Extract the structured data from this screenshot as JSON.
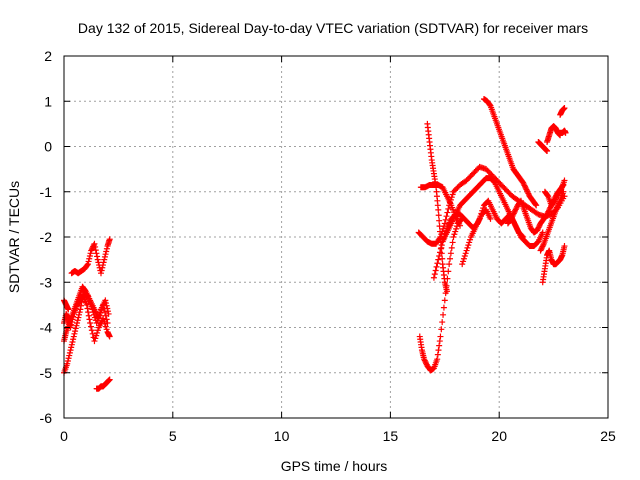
{
  "chart_data": {
    "type": "scatter",
    "title": "Day 132 of 2015, Sidereal Day-to-day VTEC variation (SDTVAR) for receiver mars",
    "xlabel": "GPS time / hours",
    "ylabel": "SDTVAR / TECUs",
    "xlim": [
      0,
      25
    ],
    "ylim": [
      -6,
      2
    ],
    "xticks": [
      "0",
      "5",
      "10",
      "15",
      "20",
      "25"
    ],
    "yticks": [
      "-6",
      "-5",
      "-4",
      "-3",
      "-2",
      "-1",
      "0",
      "1",
      "2"
    ],
    "grid": true,
    "marker": "+",
    "color": "#ff0000",
    "traces": [
      {
        "x": [
          0.0,
          0.1,
          0.2,
          0.3,
          0.45,
          0.6,
          0.75,
          0.9,
          1.05,
          1.2,
          1.4,
          1.6,
          1.8,
          2.0,
          2.1
        ],
        "y": [
          -3.9,
          -3.7,
          -3.8,
          -4.0,
          -3.7,
          -3.5,
          -3.4,
          -3.3,
          -3.5,
          -3.9,
          -4.3,
          -4.0,
          -3.8,
          -4.1,
          -4.2
        ]
      },
      {
        "x": [
          0.0,
          0.15,
          0.3,
          0.45,
          0.6,
          0.75,
          0.9,
          1.1,
          1.3,
          1.5,
          1.7,
          1.9,
          2.05
        ],
        "y": [
          -5.0,
          -4.8,
          -4.5,
          -4.2,
          -3.9,
          -3.6,
          -3.2,
          -3.3,
          -3.6,
          -3.9,
          -3.6,
          -3.4,
          -3.7
        ]
      },
      {
        "x": [
          0.0,
          0.1,
          0.25,
          0.4,
          0.55,
          0.7,
          0.85,
          1.0,
          1.2,
          1.4,
          1.6,
          1.8,
          2.0
        ],
        "y": [
          -4.3,
          -4.1,
          -3.9,
          -3.7,
          -3.5,
          -3.3,
          -3.1,
          -3.2,
          -3.4,
          -3.6,
          -3.8,
          -3.5,
          -3.9
        ]
      },
      {
        "x": [
          0.0,
          0.1,
          0.2
        ],
        "y": [
          -3.4,
          -3.5,
          -3.6
        ]
      },
      {
        "x": [
          0.35,
          0.5,
          0.65,
          0.8,
          0.95,
          1.1,
          1.25,
          1.4,
          1.55,
          1.7,
          1.85,
          2.0,
          2.1
        ],
        "y": [
          -2.8,
          -2.75,
          -2.8,
          -2.75,
          -2.7,
          -2.6,
          -2.3,
          -2.15,
          -2.5,
          -2.8,
          -2.5,
          -2.2,
          -2.05
        ]
      },
      {
        "x": [
          1.5,
          1.6,
          1.7,
          1.8,
          1.9,
          2.0,
          2.1
        ],
        "y": [
          -5.35,
          -5.35,
          -5.3,
          -5.3,
          -5.25,
          -5.2,
          -5.15
        ]
      },
      {
        "x": [
          16.35,
          16.45,
          16.55,
          16.7,
          16.85,
          17.0,
          17.15,
          17.3,
          17.5,
          17.7,
          17.9,
          18.1,
          18.3
        ],
        "y": [
          -4.2,
          -4.5,
          -4.7,
          -4.85,
          -4.95,
          -4.9,
          -4.7,
          -4.2,
          -3.4,
          -2.6,
          -2.0,
          -1.7,
          -1.6
        ]
      },
      {
        "x": [
          16.3,
          16.5,
          16.7,
          16.9,
          17.1,
          17.3,
          17.5,
          17.7,
          17.9,
          18.2,
          18.5,
          18.8,
          19.1,
          19.4,
          19.7,
          20.0,
          20.3,
          20.6,
          20.9,
          21.2,
          21.5,
          21.8,
          22.1,
          22.4,
          22.7,
          23.0
        ],
        "y": [
          -1.9,
          -2.0,
          -2.1,
          -2.15,
          -2.15,
          -2.0,
          -1.7,
          -1.3,
          -1.0,
          -0.85,
          -0.75,
          -0.6,
          -0.45,
          -0.5,
          -0.65,
          -0.8,
          -0.95,
          -1.1,
          -1.2,
          -1.3,
          -1.4,
          -1.5,
          -1.55,
          -1.5,
          -1.35,
          -1.1
        ]
      },
      {
        "x": [
          16.4,
          16.6,
          16.8,
          17.0,
          17.2,
          17.4,
          17.6,
          17.8,
          18.0,
          18.2
        ],
        "y": [
          -0.9,
          -0.9,
          -0.85,
          -0.85,
          -0.85,
          -0.9,
          -1.1,
          -1.3,
          -1.55,
          -1.75
        ]
      },
      {
        "x": [
          16.7,
          16.8,
          16.9,
          17.0,
          17.1,
          17.2,
          17.3,
          17.4,
          17.5,
          17.6
        ],
        "y": [
          0.5,
          0.1,
          -0.3,
          -0.6,
          -0.9,
          -1.4,
          -2.0,
          -2.6,
          -3.0,
          -3.2
        ]
      },
      {
        "x": [
          17.0,
          17.2,
          17.4,
          17.6,
          17.8,
          18.0,
          18.2,
          18.4,
          18.6,
          18.8,
          19.0,
          19.2,
          19.4,
          19.6
        ],
        "y": [
          -2.9,
          -2.5,
          -2.1,
          -1.8,
          -1.6,
          -1.5,
          -1.5,
          -1.6,
          -1.7,
          -1.8,
          -1.7,
          -1.5,
          -1.4,
          -1.6
        ]
      },
      {
        "x": [
          17.4,
          17.6,
          17.8,
          18.0,
          18.2,
          18.4,
          18.6,
          18.8,
          19.0,
          19.2,
          19.4,
          19.6,
          19.8,
          20.0,
          20.2,
          20.4,
          20.6,
          20.8,
          21.0,
          21.2,
          21.4,
          21.6,
          21.8,
          22.0
        ],
        "y": [
          -2.1,
          -1.9,
          -1.7,
          -1.5,
          -1.3,
          -1.2,
          -1.1,
          -1.0,
          -0.9,
          -0.8,
          -0.7,
          -0.7,
          -0.8,
          -1.0,
          -1.2,
          -1.4,
          -1.6,
          -1.8,
          -2.0,
          -2.1,
          -2.2,
          -2.2,
          -2.1,
          -1.9
        ]
      },
      {
        "x": [
          18.3,
          18.5,
          18.7,
          18.9,
          19.1,
          19.3,
          19.5,
          19.7,
          19.9,
          20.1,
          20.3,
          20.5,
          20.7,
          20.9,
          21.1
        ],
        "y": [
          -2.6,
          -2.3,
          -2.0,
          -1.8,
          -1.6,
          -1.3,
          -1.2,
          -1.4,
          -1.6,
          -1.7,
          -1.6,
          -1.5,
          -1.7,
          -1.9,
          -2.0
        ]
      },
      {
        "x": [
          19.3,
          19.45,
          19.6,
          19.75,
          19.9,
          20.05,
          20.2,
          20.35,
          20.5,
          20.65,
          20.8,
          20.95,
          21.1,
          21.25,
          21.4,
          21.55,
          21.7
        ],
        "y": [
          1.05,
          1.0,
          0.9,
          0.7,
          0.5,
          0.3,
          0.1,
          -0.1,
          -0.3,
          -0.5,
          -0.6,
          -0.7,
          -0.8,
          -0.95,
          -1.1,
          -1.2,
          -1.3
        ]
      },
      {
        "x": [
          20.4,
          20.55,
          20.7,
          20.85,
          21.0,
          21.15,
          21.3,
          21.45,
          21.6,
          21.75,
          21.9,
          22.05,
          22.2,
          22.35,
          22.5,
          22.65,
          22.8,
          22.95
        ],
        "y": [
          -1.7,
          -1.6,
          -1.45,
          -1.3,
          -1.2,
          -1.4,
          -1.6,
          -1.8,
          -1.9,
          -1.85,
          -1.7,
          -1.6,
          -1.5,
          -1.35,
          -1.2,
          -1.05,
          -0.95,
          -0.85
        ]
      },
      {
        "x": [
          21.8,
          21.9,
          22.0,
          22.1,
          22.2
        ],
        "y": [
          0.1,
          0.05,
          0.0,
          -0.05,
          -0.1
        ]
      },
      {
        "x": [
          22.2,
          22.3,
          22.4,
          22.5,
          22.6,
          22.7,
          22.8
        ],
        "y": [
          0.1,
          0.25,
          0.4,
          0.45,
          0.4,
          0.3,
          0.25
        ]
      },
      {
        "x": [
          22.8,
          22.9,
          23.0,
          23.05
        ],
        "y": [
          0.3,
          0.3,
          0.35,
          0.3
        ]
      },
      {
        "x": [
          22.8,
          22.9,
          23.0
        ],
        "y": [
          0.7,
          0.8,
          0.85
        ]
      },
      {
        "x": [
          22.0,
          22.1,
          22.2,
          22.3,
          22.4,
          22.5,
          22.6,
          22.7,
          22.8,
          22.9,
          23.0
        ],
        "y": [
          -3.0,
          -2.7,
          -2.4,
          -2.3,
          -2.5,
          -2.6,
          -2.6,
          -2.55,
          -2.5,
          -2.4,
          -2.2
        ]
      },
      {
        "x": [
          22.1,
          22.25,
          22.4,
          22.55,
          22.7,
          22.85,
          23.0
        ],
        "y": [
          -1.0,
          -1.1,
          -1.3,
          -1.2,
          -1.05,
          -0.95,
          -0.75
        ]
      },
      {
        "x": [
          21.9,
          22.05,
          22.2,
          22.35,
          22.5,
          22.65,
          22.8,
          22.95
        ],
        "y": [
          -2.3,
          -2.15,
          -1.95,
          -1.75,
          -1.55,
          -1.35,
          -1.2,
          -1.0
        ]
      }
    ]
  }
}
